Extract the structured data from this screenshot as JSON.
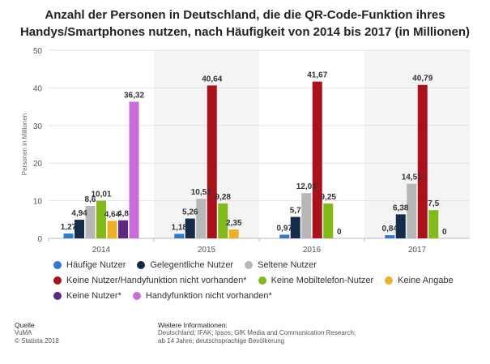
{
  "chart_data": {
    "type": "bar",
    "title": "Anzahl der Personen in Deutschland, die die QR-Code-Funktion ihres Handys/Smartphones nutzen, nach Häufigkeit von 2014 bis 2017 (in Millionen)",
    "title_lines": [
      "Anzahl der Personen in Deutschland, die die QR-Code-Funktion ihres",
      "Handys/Smartphones nutzen, nach Häufigkeit von 2014 bis 2017 (in Millionen)"
    ],
    "xlabel": "",
    "ylabel": "Personen in Millionen",
    "ylim": [
      0,
      50
    ],
    "yticks": [
      0,
      10,
      20,
      30,
      40,
      50
    ],
    "grid": true,
    "legend_position": "bottom",
    "categories": [
      "2014",
      "2015",
      "2016",
      "2017"
    ],
    "series": [
      {
        "name": "Häufige Nutzer",
        "color": "#2f79d0",
        "values": [
          1.27,
          1.18,
          0.97,
          0.84
        ],
        "labels": [
          "1,27",
          "1,18",
          "0,97",
          "0,84"
        ]
      },
      {
        "name": "Gelegentliche Nutzer",
        "color": "#132c4a",
        "values": [
          4.94,
          5.26,
          5.7,
          6.38
        ],
        "labels": [
          "4,94",
          "5,26",
          "5,7",
          "6,38"
        ]
      },
      {
        "name": "Seltene Nutzer",
        "color": "#b7b7b7",
        "values": [
          8.6,
          10.52,
          12.03,
          14.51
        ],
        "labels": [
          "8,6",
          "10,52",
          "12,03",
          "14,51"
        ]
      },
      {
        "name": "Keine Nutzer/Handyfunktion nicht vorhanden*",
        "color": "#a8121c",
        "values": [
          null,
          40.64,
          41.67,
          40.79
        ],
        "labels": [
          "",
          "40,64",
          "41,67",
          "40,79"
        ]
      },
      {
        "name": "Keine Mobiltelefon-Nutzer",
        "color": "#84b91b",
        "values": [
          10.01,
          9.28,
          9.25,
          7.5
        ],
        "labels": [
          "10,01",
          "9,28",
          "9,25",
          "7,5"
        ]
      },
      {
        "name": "Keine Angabe",
        "color": "#ecb127",
        "values": [
          4.64,
          2.35,
          0,
          0
        ],
        "labels": [
          "4,64",
          "2,35",
          "0",
          "0"
        ]
      },
      {
        "name": "Keine Nutzer*",
        "color": "#5c2a7e",
        "values": [
          4.8,
          null,
          null,
          null
        ],
        "labels": [
          "4,8",
          "",
          "",
          ""
        ]
      },
      {
        "name": "Handyfunktion nicht vorhanden*",
        "color": "#c86dd9",
        "values": [
          36.32,
          null,
          null,
          null
        ],
        "labels": [
          "36,32",
          "",
          "",
          ""
        ]
      }
    ]
  },
  "legend_rows": [
    [
      0,
      1,
      2
    ],
    [
      3,
      4,
      5
    ],
    [
      6,
      7
    ]
  ],
  "footer": {
    "source_heading": "Quelle",
    "source_lines": [
      "VuMA",
      "© Statista 2018"
    ],
    "info_heading": "Weitere Informationen:",
    "info_lines": [
      "Deutschland; IFAK; Ipsos; GfK Media and Communication Research;",
      "ab 14 Jahre; deutschsprachige Bevölkerung"
    ]
  }
}
